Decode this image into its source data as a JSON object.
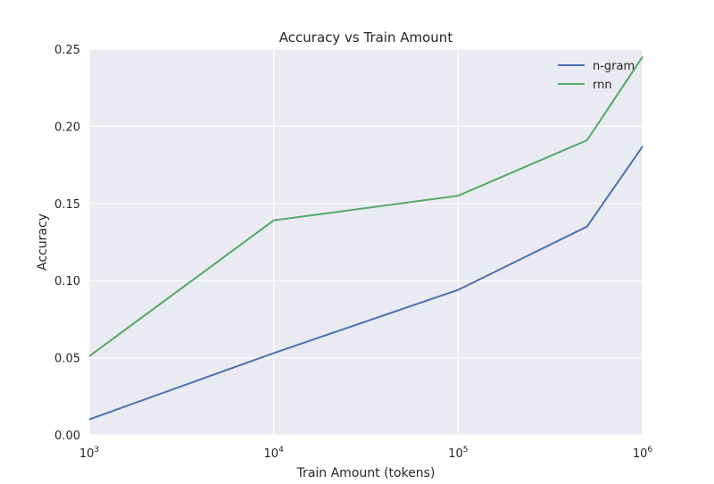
{
  "chart_data": {
    "type": "line",
    "title": "Accuracy vs Train Amount",
    "xlabel": "Train Amount (tokens)",
    "ylabel": "Accuracy",
    "xscale": "log",
    "xlim": [
      1000,
      1000000
    ],
    "ylim": [
      0.0,
      0.25
    ],
    "x_tick_values": [
      1000,
      10000,
      100000,
      1000000
    ],
    "x_tick_labels": [
      {
        "base": "10",
        "exp": "3"
      },
      {
        "base": "10",
        "exp": "4"
      },
      {
        "base": "10",
        "exp": "5"
      },
      {
        "base": "10",
        "exp": "6"
      }
    ],
    "y_ticks": [
      0.0,
      0.05,
      0.1,
      0.15,
      0.2,
      0.25
    ],
    "y_tick_labels": [
      "0.00",
      "0.05",
      "0.10",
      "0.15",
      "0.20",
      "0.25"
    ],
    "grid": true,
    "legend_position": "top-right",
    "background_color": "#eaeaf2",
    "series": [
      {
        "name": "n-gram",
        "color": "#4c72b0",
        "x": [
          1000,
          10000,
          100000,
          500000,
          1000000
        ],
        "y": [
          0.01,
          0.053,
          0.094,
          0.135,
          0.187
        ]
      },
      {
        "name": "rnn",
        "color": "#55a868",
        "x": [
          1000,
          10000,
          100000,
          500000,
          1000000
        ],
        "y": [
          0.051,
          0.139,
          0.155,
          0.191,
          0.245
        ]
      }
    ]
  }
}
